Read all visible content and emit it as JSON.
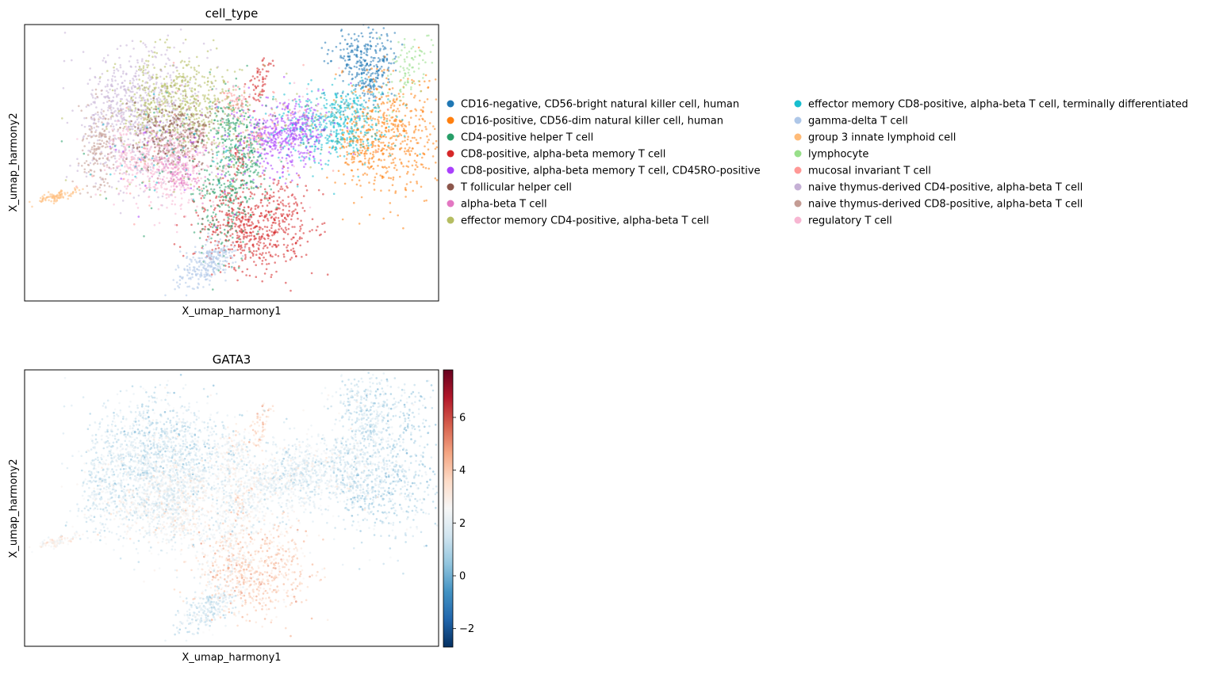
{
  "chart_data": [
    {
      "type": "scatter",
      "title": "cell_type",
      "xlabel": "X_umap_harmony1",
      "ylabel": "X_umap_harmony2",
      "grid": false,
      "legend_position": "right",
      "categories": [
        {
          "name": "CD16-negative, CD56-bright natural killer cell, human",
          "color": "#1f77b4"
        },
        {
          "name": "CD16-positive, CD56-dim natural killer cell, human",
          "color": "#ff7f0e"
        },
        {
          "name": "CD4-positive helper T cell",
          "color": "#279e68"
        },
        {
          "name": "CD8-positive, alpha-beta memory T cell",
          "color": "#d62728"
        },
        {
          "name": "CD8-positive, alpha-beta memory T cell, CD45RO-positive",
          "color": "#aa40fc"
        },
        {
          "name": "T follicular helper cell",
          "color": "#8c564b"
        },
        {
          "name": "alpha-beta T cell",
          "color": "#e377c2"
        },
        {
          "name": "effector memory CD4-positive, alpha-beta T cell",
          "color": "#b5bd61"
        },
        {
          "name": "effector memory CD8-positive, alpha-beta T cell, terminally differentiated",
          "color": "#17becf"
        },
        {
          "name": "gamma-delta T cell",
          "color": "#aec7e8"
        },
        {
          "name": "group 3 innate lymphoid cell",
          "color": "#ffbb78"
        },
        {
          "name": "lymphocyte",
          "color": "#98df8a"
        },
        {
          "name": "mucosal invariant T cell",
          "color": "#ff9896"
        },
        {
          "name": "naive thymus-derived CD4-positive, alpha-beta T cell",
          "color": "#c5b0d5"
        },
        {
          "name": "naive thymus-derived CD8-positive, alpha-beta T cell",
          "color": "#c49c94"
        },
        {
          "name": "regulatory T cell",
          "color": "#f7b6d2"
        }
      ]
    },
    {
      "type": "scatter",
      "title": "GATA3",
      "xlabel": "X_umap_harmony1",
      "ylabel": "X_umap_harmony2",
      "grid": false,
      "colormap": "RdBu_r",
      "colorbar": {
        "min": -2.7,
        "max": 7.8,
        "ticks": [
          -2,
          0,
          2,
          4,
          6
        ]
      }
    }
  ]
}
